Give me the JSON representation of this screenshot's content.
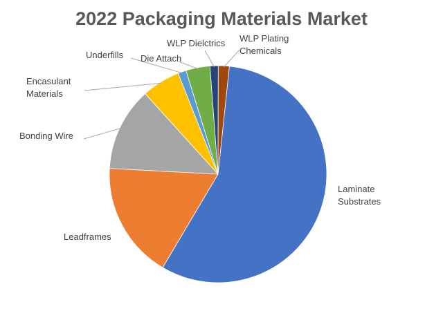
{
  "chart_data": {
    "type": "pie",
    "title": "2022 Packaging Materials Market",
    "start_angle_deg": 6,
    "direction": "clockwise",
    "slices": [
      {
        "label": "Laminate Substrates",
        "lines": [
          "Laminate",
          "Substrates"
        ],
        "value": 55.7,
        "color": "#4472C4"
      },
      {
        "label": "Leadframes",
        "lines": [
          "Leadframes"
        ],
        "value": 17.0,
        "color": "#ED7D31"
      },
      {
        "label": "Bonding Wire",
        "lines": [
          "Bonding Wire"
        ],
        "value": 12.2,
        "color": "#A5A5A5"
      },
      {
        "label": "Encasulant Materials",
        "lines": [
          "Encasulant",
          "Materials"
        ],
        "value": 5.6,
        "color": "#FFC000"
      },
      {
        "label": "Underfills",
        "lines": [
          "Underfills"
        ],
        "value": 1.2,
        "color": "#5B9BD5"
      },
      {
        "label": "Die Attach",
        "lines": [
          "Die Attach"
        ],
        "value": 3.5,
        "color": "#70AD47"
      },
      {
        "label": "WLP Dielctrics",
        "lines": [
          "WLP Dielctrics"
        ],
        "value": 1.2,
        "color": "#264478"
      },
      {
        "label": "WLP Plating Chemicals",
        "lines": [
          "WLP Plating",
          "Chemicals"
        ],
        "value": 1.6,
        "color": "#9E480E"
      }
    ]
  }
}
